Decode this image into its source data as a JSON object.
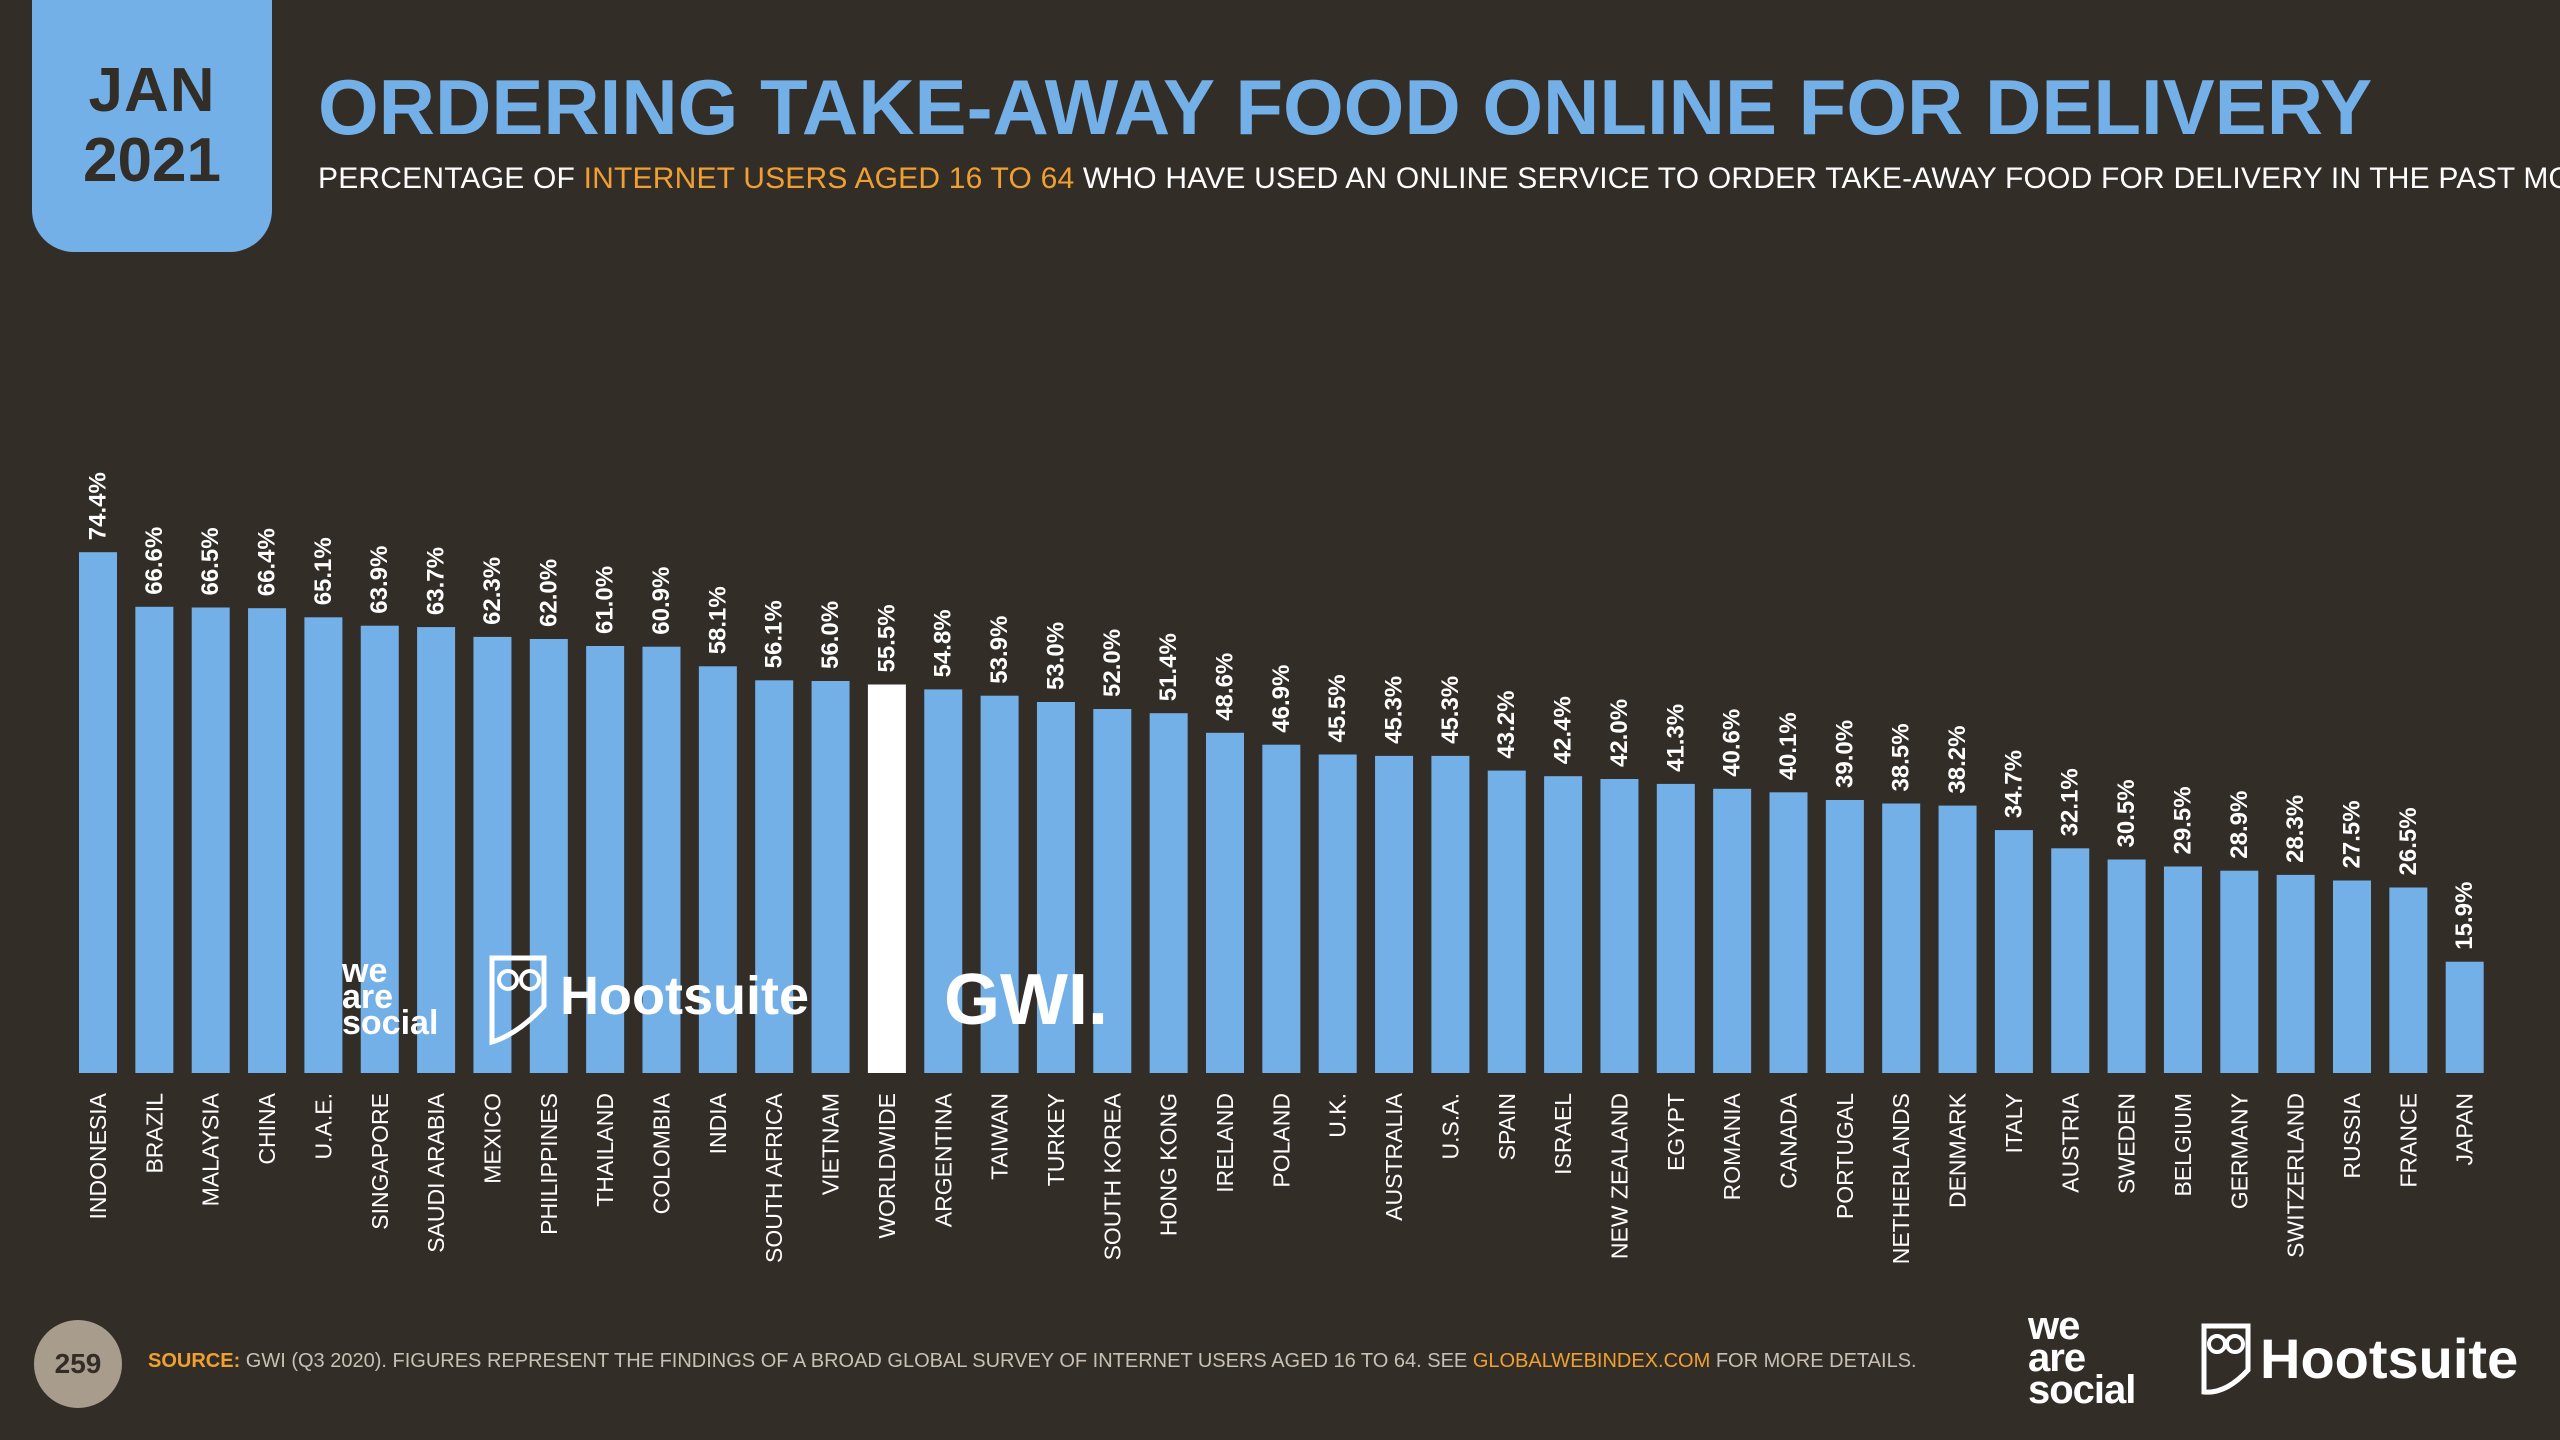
{
  "badge": {
    "month": "JAN",
    "year": "2021"
  },
  "title": "ORDERING TAKE-AWAY FOOD ONLINE FOR DELIVERY",
  "subtitle": {
    "before": "PERCENTAGE OF ",
    "highlight": "INTERNET USERS AGED 16 TO 64",
    "after": " WHO HAVE USED AN ONLINE SERVICE TO ORDER TAKE-AWAY FOOD FOR DELIVERY IN THE PAST MONTH"
  },
  "colors": {
    "bar": "#74b0e8",
    "highlight_bar": "#ffffff",
    "background": "#332d28",
    "accent": "#f0a030"
  },
  "chart_data": {
    "type": "bar",
    "title": "ORDERING TAKE-AWAY FOOD ONLINE FOR DELIVERY",
    "xlabel": "",
    "ylabel": "",
    "ylim": [
      0,
      80
    ],
    "highlight_category": "WORLDWIDE",
    "categories": [
      "INDONESIA",
      "BRAZIL",
      "MALAYSIA",
      "CHINA",
      "U.A.E.",
      "SINGAPORE",
      "SAUDI ARABIA",
      "MEXICO",
      "PHILIPPINES",
      "THAILAND",
      "COLOMBIA",
      "INDIA",
      "SOUTH AFRICA",
      "VIETNAM",
      "WORLDWIDE",
      "ARGENTINA",
      "TAIWAN",
      "TURKEY",
      "SOUTH KOREA",
      "HONG KONG",
      "IRELAND",
      "POLAND",
      "U.K.",
      "AUSTRALIA",
      "U.S.A.",
      "SPAIN",
      "ISRAEL",
      "NEW ZEALAND",
      "EGYPT",
      "ROMANIA",
      "CANADA",
      "PORTUGAL",
      "NETHERLANDS",
      "DENMARK",
      "ITALY",
      "AUSTRIA",
      "SWEDEN",
      "BELGIUM",
      "GERMANY",
      "SWITZERLAND",
      "RUSSIA",
      "FRANCE",
      "JAPAN"
    ],
    "values": [
      74.4,
      66.6,
      66.5,
      66.4,
      65.1,
      63.9,
      63.7,
      62.3,
      62.0,
      61.0,
      60.9,
      58.1,
      56.1,
      56.0,
      55.5,
      54.8,
      53.9,
      53.0,
      52.0,
      51.4,
      48.6,
      46.9,
      45.5,
      45.3,
      45.3,
      43.2,
      42.4,
      42.0,
      41.3,
      40.6,
      40.1,
      39.0,
      38.5,
      38.2,
      34.7,
      32.1,
      30.5,
      29.5,
      28.9,
      28.3,
      27.5,
      26.5,
      15.9
    ],
    "labels": [
      "74.4%",
      "66.6%",
      "66.5%",
      "66.4%",
      "65.1%",
      "63.9%",
      "63.7%",
      "62.3%",
      "62.0%",
      "61.0%",
      "60.9%",
      "58.1%",
      "56.1%",
      "56.0%",
      "55.5%",
      "54.8%",
      "53.9%",
      "53.0%",
      "52.0%",
      "51.4%",
      "48.6%",
      "46.9%",
      "45.5%",
      "45.3%",
      "45.3%",
      "43.2%",
      "42.4%",
      "42.0%",
      "41.3%",
      "40.6%",
      "40.1%",
      "39.0%",
      "38.5%",
      "38.2%",
      "34.7%",
      "32.1%",
      "30.5%",
      "29.5%",
      "28.9%",
      "28.3%",
      "27.5%",
      "26.5%",
      "15.9%"
    ]
  },
  "watermarks": {
    "we_are_social": [
      "we",
      "are",
      "social"
    ],
    "hootsuite": "Hootsuite",
    "gwi": "GWI."
  },
  "footer": {
    "page_number": "259",
    "source_label": "SOURCE:",
    "source_text": " GWI (Q3 2020). FIGURES REPRESENT THE FINDINGS OF A BROAD GLOBAL SURVEY OF INTERNET USERS AGED 16 TO 64. SEE ",
    "source_link": "GLOBALWEBINDEX.COM",
    "source_after": " FOR MORE DETAILS.",
    "logo_was": [
      "we",
      "are",
      "social"
    ],
    "logo_hootsuite": "Hootsuite"
  }
}
